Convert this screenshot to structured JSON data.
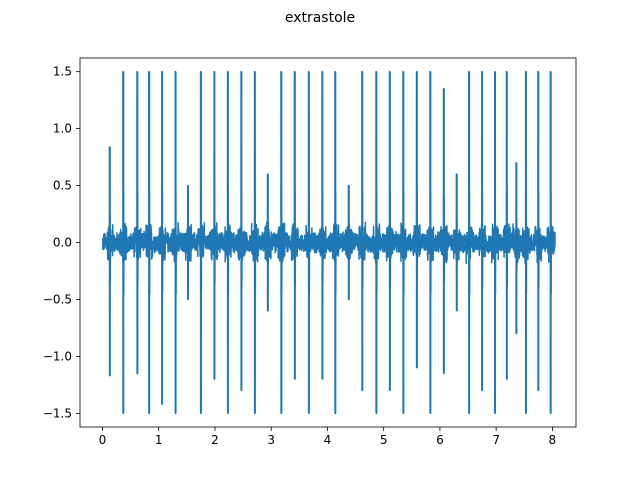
{
  "chart_data": {
    "type": "line",
    "title": "extrastole",
    "xlabel": "",
    "ylabel": "",
    "xlim": [
      -0.4,
      8.42
    ],
    "ylim": [
      -1.62,
      1.62
    ],
    "x_ticks": [
      0,
      1,
      2,
      3,
      4,
      5,
      6,
      7,
      8
    ],
    "x_tick_labels": [
      "0",
      "1",
      "2",
      "3",
      "4",
      "5",
      "6",
      "7",
      "8"
    ],
    "y_ticks": [
      -1.5,
      -1.0,
      -0.5,
      0.0,
      0.5,
      1.0,
      1.5
    ],
    "y_tick_labels": [
      "−1.5",
      "−1.0",
      "−0.5",
      "0.0",
      "0.5",
      "1.0",
      "1.5"
    ],
    "grid": false,
    "legend": "none",
    "series": [
      {
        "color": "#1f77b4",
        "x_range": [
          0,
          8.05
        ],
        "baseline_noise_amplitude": 0.1,
        "spikes": [
          {
            "x": 0.13,
            "max": 0.84,
            "min": -1.17
          },
          {
            "x": 0.37,
            "max": 1.5,
            "min": -1.5
          },
          {
            "x": 0.62,
            "max": 1.5,
            "min": -1.15
          },
          {
            "x": 0.83,
            "max": 1.5,
            "min": -1.5
          },
          {
            "x": 1.06,
            "max": 1.5,
            "min": -1.42
          },
          {
            "x": 1.3,
            "max": 1.5,
            "min": -1.5
          },
          {
            "x": 1.52,
            "max": 0.5,
            "min": -0.5
          },
          {
            "x": 1.75,
            "max": 1.5,
            "min": -1.5
          },
          {
            "x": 1.99,
            "max": 1.5,
            "min": -1.2
          },
          {
            "x": 2.23,
            "max": 1.5,
            "min": -1.5
          },
          {
            "x": 2.47,
            "max": 1.5,
            "min": -1.3
          },
          {
            "x": 2.71,
            "max": 1.5,
            "min": -1.5
          },
          {
            "x": 2.94,
            "max": 0.6,
            "min": -0.6
          },
          {
            "x": 3.18,
            "max": 1.5,
            "min": -1.5
          },
          {
            "x": 3.42,
            "max": 1.5,
            "min": -1.2
          },
          {
            "x": 3.67,
            "max": 1.5,
            "min": -1.5
          },
          {
            "x": 3.91,
            "max": 1.5,
            "min": -1.2
          },
          {
            "x": 4.14,
            "max": 1.5,
            "min": -1.5
          },
          {
            "x": 4.38,
            "max": 0.5,
            "min": -0.5
          },
          {
            "x": 4.62,
            "max": 1.5,
            "min": -1.3
          },
          {
            "x": 4.87,
            "max": 1.5,
            "min": -1.5
          },
          {
            "x": 5.11,
            "max": 1.5,
            "min": -1.3
          },
          {
            "x": 5.35,
            "max": 1.5,
            "min": -1.5
          },
          {
            "x": 5.59,
            "max": 1.5,
            "min": -1.1
          },
          {
            "x": 5.83,
            "max": 1.5,
            "min": -1.5
          },
          {
            "x": 6.07,
            "max": 1.35,
            "min": -1.15
          },
          {
            "x": 6.3,
            "max": 0.6,
            "min": -0.6
          },
          {
            "x": 6.52,
            "max": 1.5,
            "min": -1.5
          },
          {
            "x": 6.75,
            "max": 1.5,
            "min": -1.3
          },
          {
            "x": 6.98,
            "max": 1.5,
            "min": -1.5
          },
          {
            "x": 7.19,
            "max": 1.5,
            "min": -1.2
          },
          {
            "x": 7.36,
            "max": 0.7,
            "min": -0.8
          },
          {
            "x": 7.53,
            "max": 1.5,
            "min": -1.5
          },
          {
            "x": 7.75,
            "max": 1.5,
            "min": -1.3
          },
          {
            "x": 7.97,
            "max": 1.5,
            "min": -1.5
          }
        ]
      }
    ]
  }
}
